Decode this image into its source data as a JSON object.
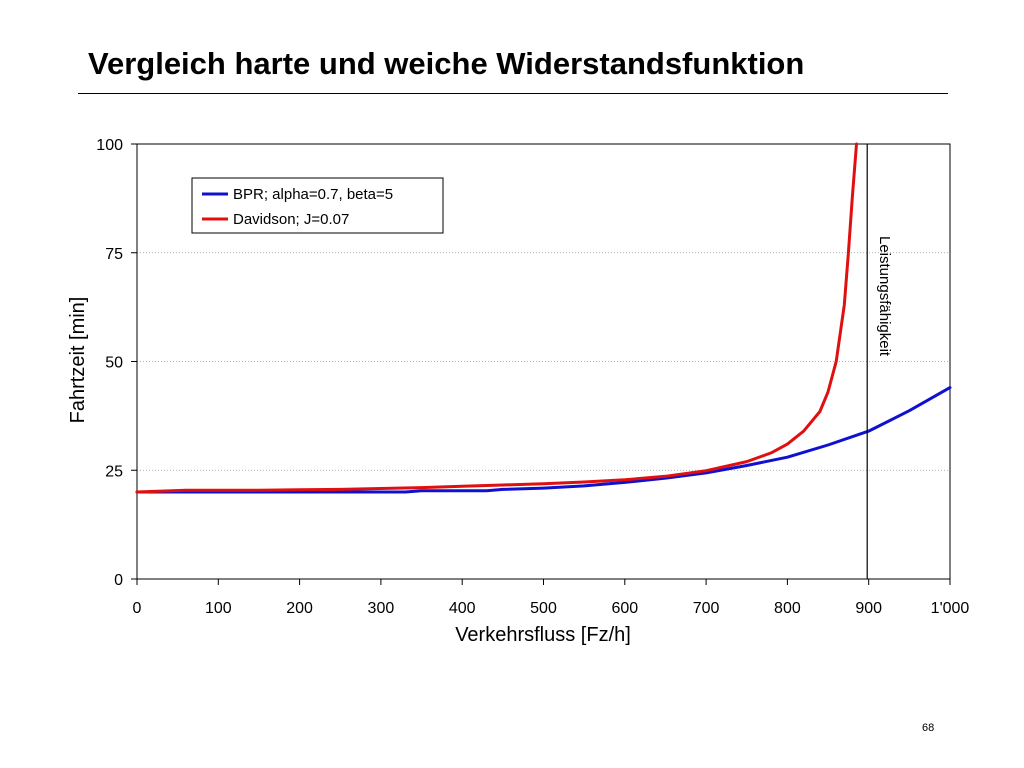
{
  "slide": {
    "title": "Vergleich harte und weiche Widerstandsfunktion",
    "page_number": "68"
  },
  "chart_data": {
    "type": "line",
    "xlabel": "Verkehrsfluss [Fz/h]",
    "ylabel": "Fahrtzeit [min]",
    "xlim": [
      0,
      1000
    ],
    "ylim": [
      0,
      100
    ],
    "x_ticks": [
      0,
      100,
      200,
      300,
      400,
      500,
      600,
      700,
      800,
      900,
      1000
    ],
    "x_tick_labels": [
      "0",
      "100",
      "200",
      "300",
      "400",
      "500",
      "600",
      "700",
      "800",
      "900",
      "1'000"
    ],
    "y_ticks": [
      0,
      25,
      50,
      75,
      100
    ],
    "y_tick_labels": [
      "0",
      "25",
      "50",
      "75",
      "100"
    ],
    "grid": "horizontal dotted",
    "legend_position": "top-left",
    "series": [
      {
        "name": "BPR; alpha=0.7, beta=5",
        "color": "#1010d0",
        "x": [
          0,
          50,
          100,
          150,
          200,
          250,
          300,
          330,
          350,
          400,
          430,
          450,
          500,
          550,
          600,
          650,
          700,
          750,
          800,
          850,
          900,
          950,
          1000
        ],
        "y": [
          20.0,
          20.0,
          20.0,
          20.0,
          20.0,
          20.0,
          20.0,
          20.0,
          20.3,
          20.3,
          20.3,
          20.6,
          20.9,
          21.4,
          22.2,
          23.2,
          24.4,
          26.1,
          28.0,
          30.8,
          34.0,
          38.7,
          44.0
        ]
      },
      {
        "name": "Davidson; J=0.07",
        "color": "#e01010",
        "x": [
          0,
          60,
          100,
          150,
          200,
          250,
          300,
          350,
          400,
          450,
          500,
          550,
          600,
          650,
          700,
          750,
          780,
          800,
          820,
          840,
          850,
          860,
          870,
          875,
          880,
          885
        ],
        "y": [
          20.0,
          20.4,
          20.4,
          20.4,
          20.5,
          20.6,
          20.8,
          21.0,
          21.3,
          21.6,
          21.9,
          22.3,
          22.8,
          23.6,
          24.9,
          27.0,
          29.0,
          31.0,
          34.0,
          38.5,
          43.0,
          50.0,
          63.0,
          75.0,
          88.0,
          100.0
        ]
      }
    ],
    "annotations": [
      {
        "type": "vertical-line",
        "x": 900,
        "label": "Leistungsfähigkeit"
      }
    ]
  }
}
